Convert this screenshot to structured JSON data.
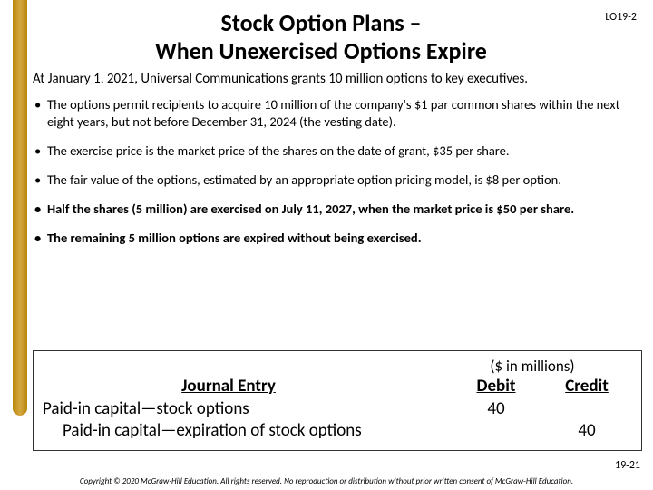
{
  "lo_tag": "LO19-2",
  "title_line1": "Stock Option Plans –",
  "title_line2": "When Unexercised Options Expire",
  "intro": "At January 1, 2021, Universal Communications grants 10 million options to key executives.",
  "bullets": [
    "The options permit recipients to acquire 10 million of the company's $1 par common shares within the next eight years, but not before December 31, 2024 (the vesting date).",
    "The exercise price is the market price of the shares on the date of grant, $35 per share.",
    "The fair value of the options, estimated by an appropriate option pricing model, is $8 per option.",
    "Half the shares (5 million) are exercised on July 11, 2027, when the market price is $50 per share.",
    "The remaining 5 million options are expired without being exercised."
  ],
  "journal": {
    "units": "($ in millions)",
    "heading": "Journal Entry",
    "col_debit": "Debit",
    "col_credit": "Credit",
    "line1_acct": "Paid-in capital—stock options",
    "line1_debit": "40",
    "line2_acct": "Paid-in capital—expiration of stock options",
    "line2_credit": "40"
  },
  "page_number": "19-21",
  "copyright": "Copyright © 2020 McGraw-Hill Education. All rights reserved. No reproduction or distribution without prior written consent of McGraw-Hill Education.",
  "colors": {
    "accent_bar": "#b8860b",
    "text": "#000000",
    "background": "#ffffff"
  }
}
